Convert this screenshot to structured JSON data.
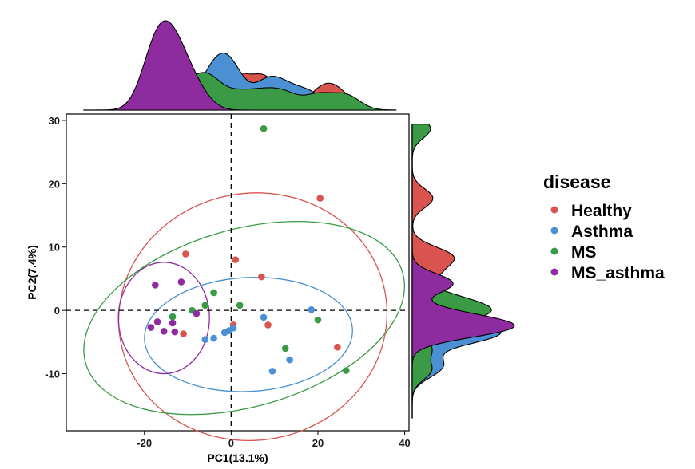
{
  "chart_data": {
    "type": "scatter",
    "title": "",
    "xlabel": "PC1(13.1%)",
    "ylabel": "PC2(7.4%)",
    "xlim": [
      -38,
      41
    ],
    "ylim": [
      -19,
      31
    ],
    "xticks": [
      -20,
      0,
      20,
      40
    ],
    "yticks": [
      -10,
      0,
      10,
      20,
      30
    ],
    "reference_lines": {
      "x": 0,
      "y": 0,
      "style": "dashed"
    },
    "grid": false,
    "legend": {
      "title": "disease",
      "position": "right"
    },
    "series": [
      {
        "name": "Healthy",
        "color": "#d9534f",
        "points": [
          [
            -11,
            -3.7
          ],
          [
            -10.5,
            8.9
          ],
          [
            1,
            8
          ],
          [
            7,
            5.3
          ],
          [
            8.5,
            -2.3
          ],
          [
            20.5,
            17.7
          ],
          [
            24.5,
            -5.8
          ],
          [
            0.5,
            -2.3
          ]
        ],
        "ellipse": {
          "cx": 5,
          "cy": -1,
          "rx": 31,
          "ry": 19.5,
          "angle": -10
        }
      },
      {
        "name": "Asthma",
        "color": "#4a90d2",
        "points": [
          [
            -6,
            -4.6
          ],
          [
            -4,
            -4.4
          ],
          [
            -1.5,
            -3.5
          ],
          [
            -0.5,
            -3.2
          ],
          [
            0.5,
            -2.8
          ],
          [
            7.5,
            -1.1
          ],
          [
            9.5,
            -9.6
          ],
          [
            13.5,
            -7.8
          ],
          [
            18.5,
            0.1
          ]
        ],
        "ellipse": {
          "cx": 4,
          "cy": -3.8,
          "rx": 24,
          "ry": 9,
          "angle": -3
        }
      },
      {
        "name": "MS",
        "color": "#3a9a45",
        "points": [
          [
            -13.5,
            -1
          ],
          [
            -9,
            0
          ],
          [
            -6,
            0.8
          ],
          [
            -4,
            2.8
          ],
          [
            2,
            0.8
          ],
          [
            7.5,
            28.7
          ],
          [
            12.5,
            -6
          ],
          [
            20,
            -1.5
          ],
          [
            26.5,
            -9.5
          ]
        ],
        "ellipse": {
          "cx": 3,
          "cy": -1.2,
          "rx": 38,
          "ry": 14,
          "angle": -16
        }
      },
      {
        "name": "MS_asthma",
        "color": "#8e2b9e",
        "points": [
          [
            -17.5,
            4
          ],
          [
            -18.5,
            -2.7
          ],
          [
            -17,
            -1.8
          ],
          [
            -15.5,
            -3.3
          ],
          [
            -13.5,
            -2
          ],
          [
            -13,
            -3.4
          ],
          [
            -11.5,
            4.5
          ],
          [
            -8,
            -0.5
          ]
        ],
        "ellipse": {
          "cx": -15.5,
          "cy": -1.2,
          "rx": 10.5,
          "ry": 8.8,
          "angle": 0
        }
      }
    ],
    "marginal_density": {
      "type": "density",
      "fill_by": "disease",
      "sides": [
        "top",
        "right"
      ]
    }
  }
}
